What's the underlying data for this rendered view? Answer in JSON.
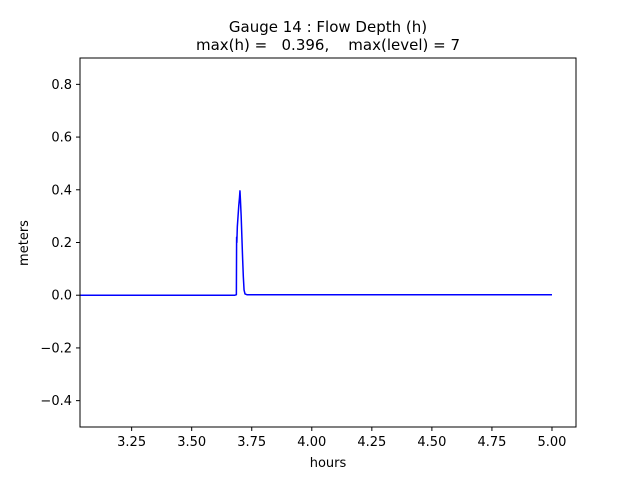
{
  "chart_data": {
    "type": "line",
    "title_line1": "Gauge 14 : Flow Depth (h)",
    "title_line2": "max(h) =   0.396,    max(level) = 7",
    "xlabel": "hours",
    "ylabel": "meters",
    "xlim": [
      3.035,
      5.1
    ],
    "ylim": [
      -0.5,
      0.9
    ],
    "xticks": [
      3.25,
      3.5,
      3.75,
      4.0,
      4.25,
      4.5,
      4.75,
      5.0
    ],
    "xtick_labels": [
      "3.25",
      "3.50",
      "3.75",
      "4.00",
      "4.25",
      "4.50",
      "4.75",
      "5.00"
    ],
    "yticks": [
      -0.4,
      -0.2,
      0.0,
      0.2,
      0.4,
      0.6,
      0.8
    ],
    "ytick_labels": [
      "−0.4",
      "−0.2",
      "0.0",
      "0.2",
      "0.4",
      "0.6",
      "0.8"
    ],
    "grid": false,
    "line_color": "#0000ff",
    "series": [
      {
        "x": [
          3.035,
          3.2,
          3.4,
          3.6,
          3.68,
          3.686,
          3.687,
          3.688,
          3.689,
          3.69,
          3.693,
          3.696,
          3.699,
          3.701,
          3.703,
          3.706,
          3.709,
          3.712,
          3.715,
          3.718,
          3.722,
          3.73,
          3.8,
          4.0,
          4.25,
          4.5,
          4.75,
          5.0
        ],
        "y": [
          0.0,
          0.0,
          0.0,
          0.0,
          0.0,
          0.002,
          0.22,
          0.2,
          0.23,
          0.26,
          0.3,
          0.34,
          0.37,
          0.396,
          0.36,
          0.3,
          0.22,
          0.14,
          0.07,
          0.02,
          0.005,
          0.002,
          0.002,
          0.002,
          0.002,
          0.002,
          0.002,
          0.002
        ]
      }
    ]
  }
}
